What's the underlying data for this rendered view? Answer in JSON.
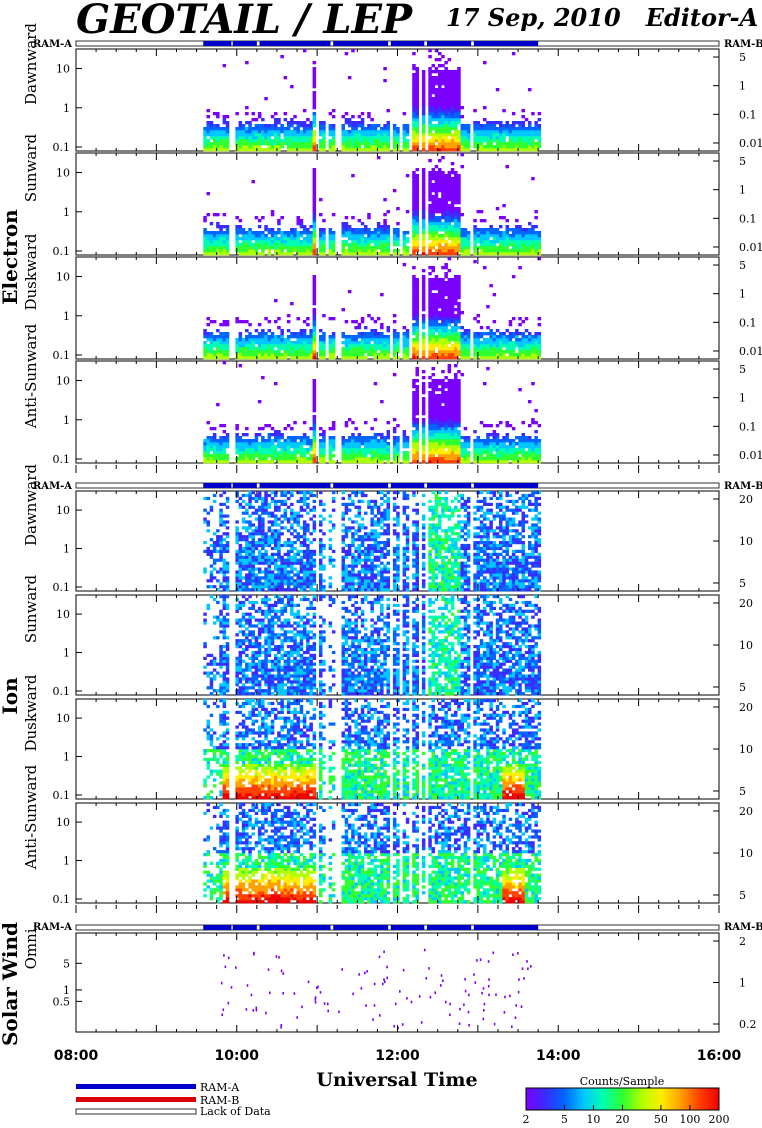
{
  "header": {
    "title": "GEOTAIL / LEP",
    "subtitle": "17 Sep, 2010   Editor-A"
  },
  "ram_labels": {
    "a": "RAM-A",
    "b": "RAM-B"
  },
  "chart_data": {
    "type": "heatmap",
    "x_range": [
      "08:00",
      "16:00"
    ],
    "time_ticks": [
      "08:00",
      "10:00",
      "12:00",
      "14:00",
      "16:00"
    ],
    "xlabel": "Universal Time",
    "data_span": [
      "09:35",
      "13:45"
    ],
    "ram_a_segments": [
      [
        "09:35",
        "09:56"
      ],
      [
        "09:57",
        "10:15"
      ],
      [
        "10:17",
        "11:10"
      ],
      [
        "11:12",
        "11:53"
      ],
      [
        "11:55",
        "12:20"
      ],
      [
        "12:22",
        "12:55"
      ],
      [
        "12:57",
        "13:45"
      ]
    ],
    "groups": [
      {
        "name": "Electron",
        "panels": [
          {
            "label": "Dawnward",
            "left_ticks": [
              "10",
              "1",
              "0.1"
            ],
            "right_ticks": [
              "5",
              "1",
              "0.1",
              "0.01"
            ]
          },
          {
            "label": "Sunward",
            "left_ticks": [
              "10",
              "1",
              "0.1"
            ],
            "right_ticks": [
              "5",
              "1",
              "0.1",
              "0.01"
            ]
          },
          {
            "label": "Duskward",
            "left_ticks": [
              "10",
              "1",
              "0.1"
            ],
            "right_ticks": [
              "5",
              "1",
              "0.1",
              "0.01"
            ]
          },
          {
            "label": "Anti-Sunward",
            "left_ticks": [
              "10",
              "1",
              "0.1"
            ],
            "right_ticks": [
              "5",
              "1",
              "0.1",
              "0.01"
            ]
          }
        ]
      },
      {
        "name": "Ion",
        "panels": [
          {
            "label": "Dawnward",
            "left_ticks": [
              "10",
              "1",
              "0.1"
            ],
            "right_ticks": [
              "20",
              "10",
              "5"
            ]
          },
          {
            "label": "Sunward",
            "left_ticks": [
              "10",
              "1",
              "0.1"
            ],
            "right_ticks": [
              "20",
              "10",
              "5"
            ]
          },
          {
            "label": "Duskward",
            "left_ticks": [
              "10",
              "1",
              "0.1"
            ],
            "right_ticks": [
              "20",
              "10",
              "5"
            ]
          },
          {
            "label": "Anti-Sunward",
            "left_ticks": [
              "10",
              "1",
              "0.1"
            ],
            "right_ticks": [
              "20",
              "10",
              "5"
            ]
          }
        ]
      },
      {
        "name": "Solar Wind",
        "panels": [
          {
            "label": "Omni.",
            "left_ticks": [
              "5",
              "1",
              "0.5"
            ],
            "right_ticks": [
              "2",
              "1",
              "0.2"
            ]
          }
        ]
      }
    ],
    "legend": {
      "ram_a": "RAM-A",
      "ram_b": "RAM-B",
      "lack": "Lack of Data"
    },
    "colorbar": {
      "title": "Counts/Sample",
      "ticks": [
        "2",
        "5",
        "10",
        "20",
        "50",
        "100",
        "200"
      ],
      "colors": [
        "#7a00ff",
        "#3a2cff",
        "#0066ff",
        "#00c8ff",
        "#00ffb0",
        "#30ff30",
        "#b0ff00",
        "#ffee00",
        "#ffa000",
        "#ff4000",
        "#f00000"
      ]
    }
  }
}
